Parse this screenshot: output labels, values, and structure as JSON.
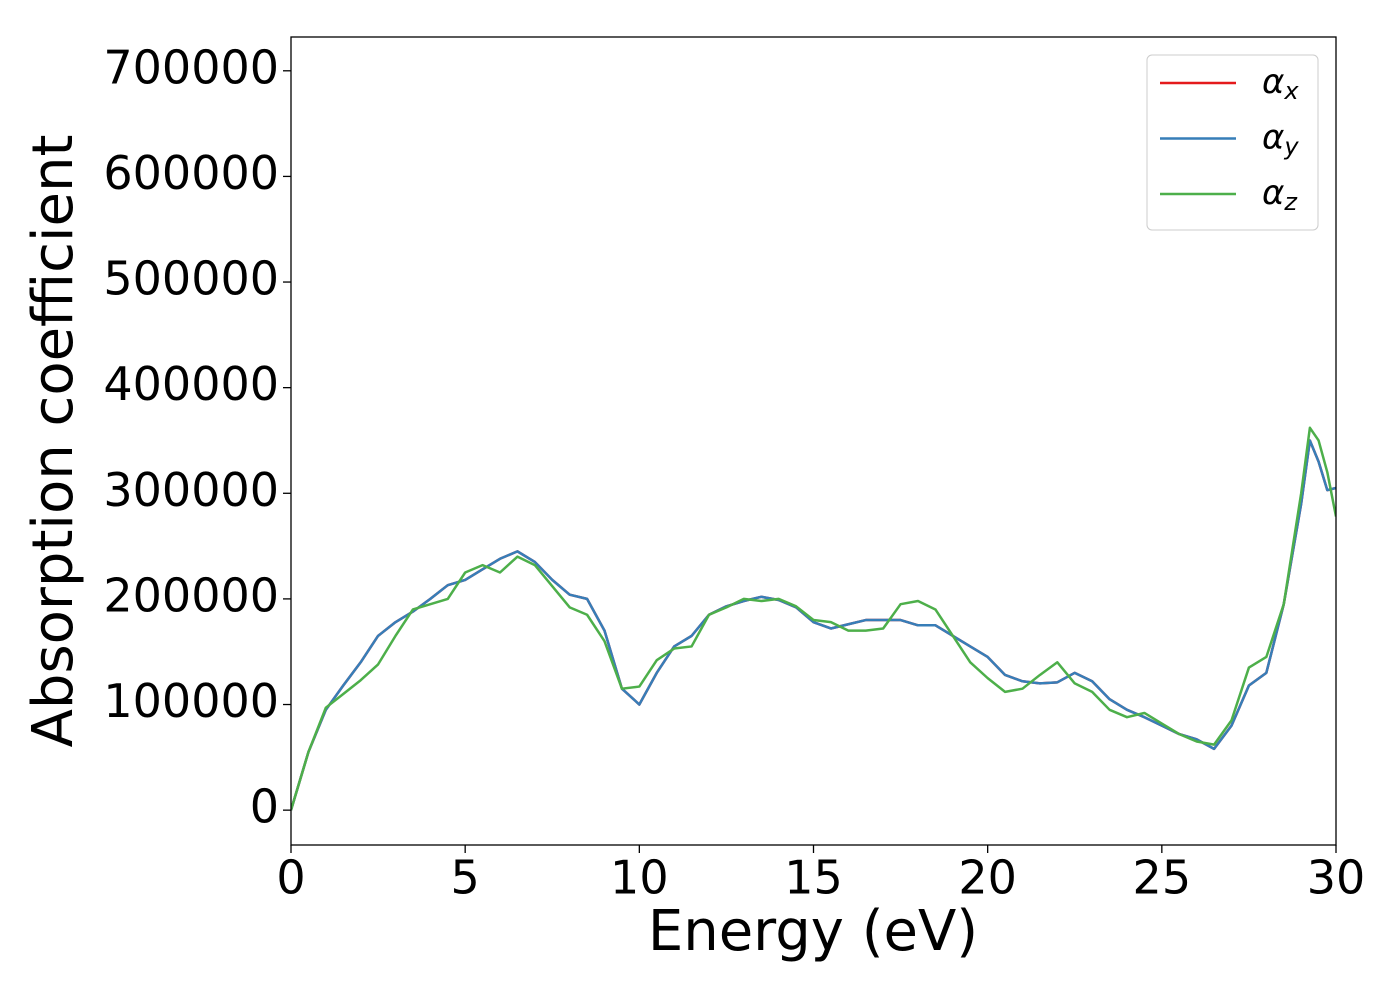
{
  "chart_data": {
    "type": "line",
    "xlabel": "Energy (eV)",
    "ylabel": "Absorption coefficient",
    "x": [
      0,
      0.5,
      1,
      1.5,
      2,
      2.5,
      3,
      3.5,
      4,
      4.5,
      5,
      5.5,
      6,
      6.5,
      7,
      7.5,
      8,
      8.5,
      9,
      9.5,
      10,
      10.5,
      11,
      11.5,
      12,
      12.5,
      13,
      13.5,
      14,
      14.5,
      15,
      15.5,
      16,
      16.5,
      17,
      17.5,
      18,
      18.5,
      19,
      19.5,
      20,
      20.5,
      21,
      21.5,
      22,
      22.5,
      23,
      23.5,
      24,
      24.5,
      25,
      25.5,
      26,
      26.5,
      27,
      27.5,
      28,
      28.5,
      29,
      29.25,
      29.5,
      29.75,
      30
    ],
    "series": [
      {
        "name": "αx",
        "color": "#e41a1c",
        "values": [
          0,
          55000,
          95000,
          118000,
          140000,
          165000,
          178000,
          188000,
          200000,
          213000,
          218000,
          228000,
          238000,
          245000,
          235000,
          218000,
          204000,
          200000,
          170000,
          115000,
          100000,
          130000,
          155000,
          165000,
          185000,
          193000,
          198000,
          202000,
          199000,
          192000,
          178000,
          172000,
          176000,
          180000,
          180000,
          180000,
          175000,
          175000,
          165000,
          155000,
          145000,
          128000,
          122000,
          120000,
          121000,
          130000,
          122000,
          105000,
          95000,
          88000,
          80000,
          72000,
          67000,
          58000,
          80000,
          118000,
          130000,
          195000,
          290000,
          350000,
          330000,
          303000,
          305000
        ]
      },
      {
        "name": "αy",
        "color": "#377eb8",
        "values": [
          0,
          55000,
          95000,
          118000,
          140000,
          165000,
          178000,
          188000,
          200000,
          213000,
          218000,
          228000,
          238000,
          245000,
          235000,
          218000,
          204000,
          200000,
          170000,
          115000,
          100000,
          130000,
          155000,
          165000,
          185000,
          193000,
          198000,
          202000,
          199000,
          192000,
          178000,
          172000,
          176000,
          180000,
          180000,
          180000,
          175000,
          175000,
          165000,
          155000,
          145000,
          128000,
          122000,
          120000,
          121000,
          130000,
          122000,
          105000,
          95000,
          88000,
          80000,
          72000,
          67000,
          58000,
          80000,
          118000,
          130000,
          195000,
          290000,
          350000,
          330000,
          303000,
          305000
        ]
      },
      {
        "name": "αz",
        "color": "#4daf4a",
        "values": [
          0,
          55000,
          97000,
          110000,
          123000,
          138000,
          165000,
          190000,
          195000,
          200000,
          225000,
          232000,
          225000,
          240000,
          232000,
          212000,
          192000,
          185000,
          160000,
          115000,
          117000,
          142000,
          153000,
          155000,
          185000,
          192000,
          200000,
          198000,
          200000,
          193000,
          180000,
          178000,
          170000,
          170000,
          172000,
          195000,
          198000,
          190000,
          165000,
          140000,
          125000,
          112000,
          115000,
          128000,
          140000,
          120000,
          112000,
          95000,
          88000,
          92000,
          82000,
          72000,
          65000,
          62000,
          85000,
          135000,
          145000,
          195000,
          300000,
          362000,
          350000,
          320000,
          278000
        ]
      }
    ],
    "xlim": [
      0,
      30
    ],
    "xticks": [
      0,
      5,
      10,
      15,
      20,
      25,
      30
    ],
    "ylim": [
      -33000,
      732000
    ],
    "yticks": [
      0,
      100000,
      200000,
      300000,
      400000,
      500000,
      600000,
      700000
    ],
    "legend": "upper right"
  }
}
